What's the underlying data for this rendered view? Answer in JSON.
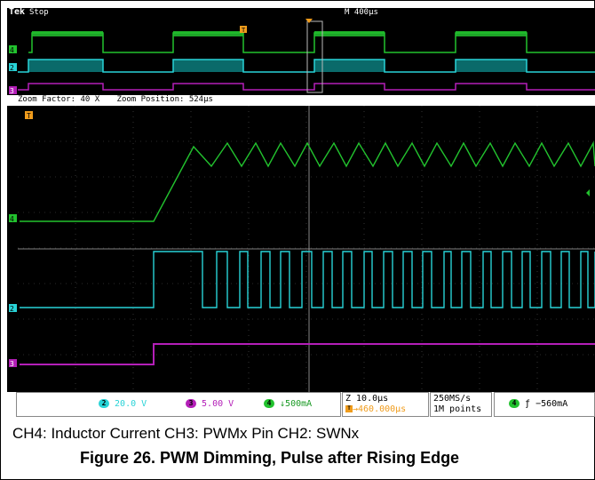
{
  "scope": {
    "brand": "Tek",
    "run_state": "Stop",
    "horizontal_scale": "M 400µs",
    "zoom_factor": "Zoom Factor: 40 X",
    "zoom_position": "Zoom Position: 524µs",
    "trigger_marker": "T",
    "channel_markers": {
      "ch4": "4",
      "ch2": "2",
      "ch3": "3"
    },
    "readouts": {
      "ch2_num": "2",
      "ch2_scale": "20.0 V",
      "ch3_num": "3",
      "ch3_scale": "5.00 V",
      "ch4_num": "4",
      "ch4_scale": "↓500mA",
      "timebase": "Z 10.0µs",
      "trigger_offset": "→460.000µs",
      "sample_rate": "250MS/s",
      "record_length": "1M points",
      "trig_source": "4",
      "trig_slope": "ƒ",
      "trig_level": "−560mA"
    },
    "colors": {
      "ch4": "#22c22e",
      "ch2": "#29d3d7",
      "ch3": "#b41fb8",
      "ch2_fill": "#0a6a6a",
      "trigger": "#f09c1c"
    }
  },
  "caption": "CH4: Inductor Current CH3: PWMx Pin CH2: SWNx",
  "figure_title": "Figure 26. PWM Dimming, Pulse after Rising Edge"
}
